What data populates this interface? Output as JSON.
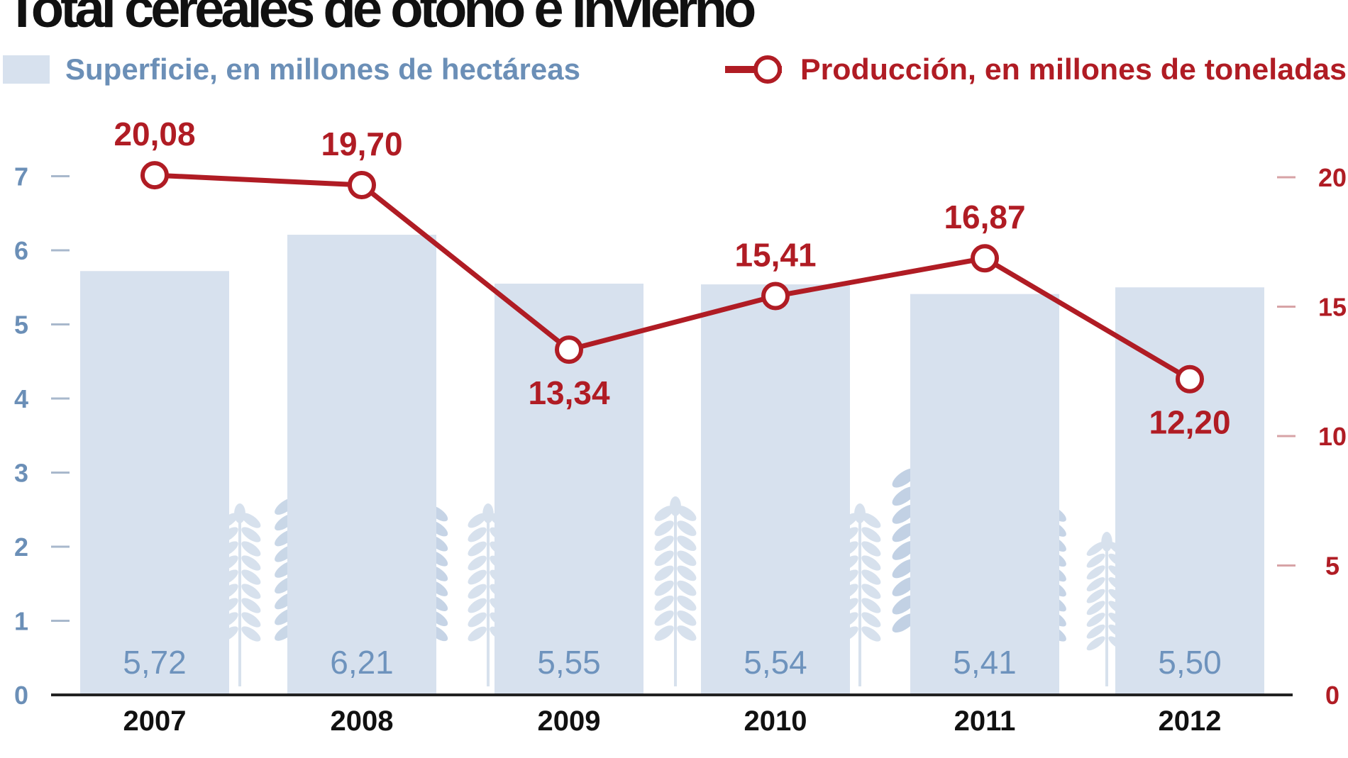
{
  "chart_data": {
    "type": "bar",
    "title": "Total cereales de otoño e invierno",
    "categories": [
      "2007",
      "2008",
      "2009",
      "2010",
      "2011",
      "2012"
    ],
    "series": [
      {
        "name": "Superficie, en millones de hectáreas",
        "type": "bar",
        "axis": "left",
        "values": [
          5.72,
          6.21,
          5.55,
          5.54,
          5.41,
          5.5
        ],
        "labels": [
          "5,72",
          "6,21",
          "5,55",
          "5,54",
          "5,41",
          "5,50"
        ]
      },
      {
        "name": "Producción, en millones de toneladas",
        "type": "line",
        "axis": "right",
        "values": [
          20.08,
          19.7,
          13.34,
          15.41,
          16.87,
          12.2
        ],
        "labels": [
          "20,08",
          "19,70",
          "13,34",
          "15,41",
          "16,87",
          "12,20"
        ]
      }
    ],
    "left_axis": {
      "ylim": [
        0,
        7
      ],
      "ticks": [
        "0",
        "1",
        "2",
        "3",
        "4",
        "5",
        "6",
        "7"
      ]
    },
    "right_axis": {
      "ylim": [
        0,
        20
      ],
      "ticks": [
        "0",
        "5",
        "10",
        "15",
        "20"
      ]
    },
    "legend_position": "top",
    "grid": false,
    "colors": {
      "bar": "#d7e1ee",
      "bar_text": "#6e93bd",
      "line": "#b01c24",
      "axis_left": "#6b8fb7",
      "axis_right": "#b01c24",
      "baseline": "#222222",
      "wheat": "#b8cae0"
    }
  }
}
